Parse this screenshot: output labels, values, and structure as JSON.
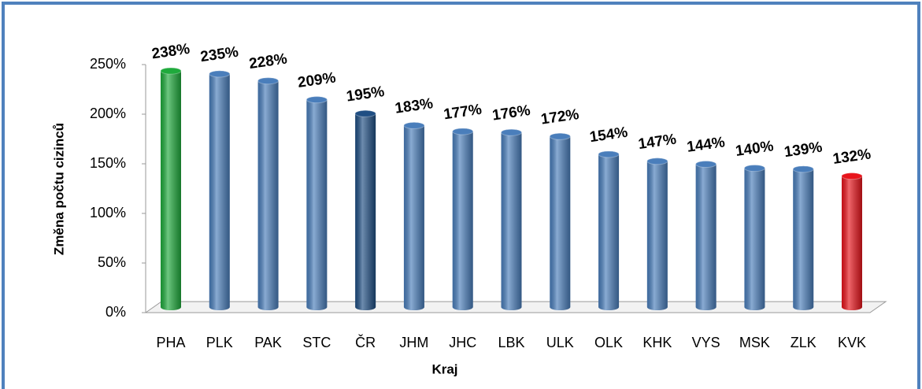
{
  "chart_data": {
    "type": "bar",
    "y_label": "Změna počtu cizinců",
    "x_label": "Kraj",
    "categories": [
      "PHA",
      "PLK",
      "PAK",
      "STC",
      "ČR",
      "JHM",
      "JHC",
      "LBK",
      "ULK",
      "OLK",
      "KHK",
      "VYS",
      "MSK",
      "ZLK",
      "KVK"
    ],
    "values": [
      238,
      235,
      228,
      209,
      195,
      183,
      177,
      176,
      172,
      154,
      147,
      144,
      140,
      139,
      132
    ],
    "value_labels": [
      "238%",
      "235%",
      "228%",
      "209%",
      "195%",
      "183%",
      "177%",
      "176%",
      "172%",
      "154%",
      "147%",
      "144%",
      "140%",
      "139%",
      "132%"
    ],
    "colors": [
      "#1faa3c",
      "#4a7ebb",
      "#4a7ebb",
      "#4a7ebb",
      "#1f4e83",
      "#4a7ebb",
      "#4a7ebb",
      "#4a7ebb",
      "#4a7ebb",
      "#4a7ebb",
      "#4a7ebb",
      "#4a7ebb",
      "#4a7ebb",
      "#4a7ebb",
      "#e8141b"
    ],
    "ylim": [
      0,
      250
    ],
    "yticks": [
      {
        "value": 0,
        "label": "0%"
      },
      {
        "value": 50,
        "label": "50%"
      },
      {
        "value": 100,
        "label": "100%"
      },
      {
        "value": 150,
        "label": "150%"
      },
      {
        "value": 200,
        "label": "200%"
      },
      {
        "value": 250,
        "label": "250%"
      }
    ]
  }
}
